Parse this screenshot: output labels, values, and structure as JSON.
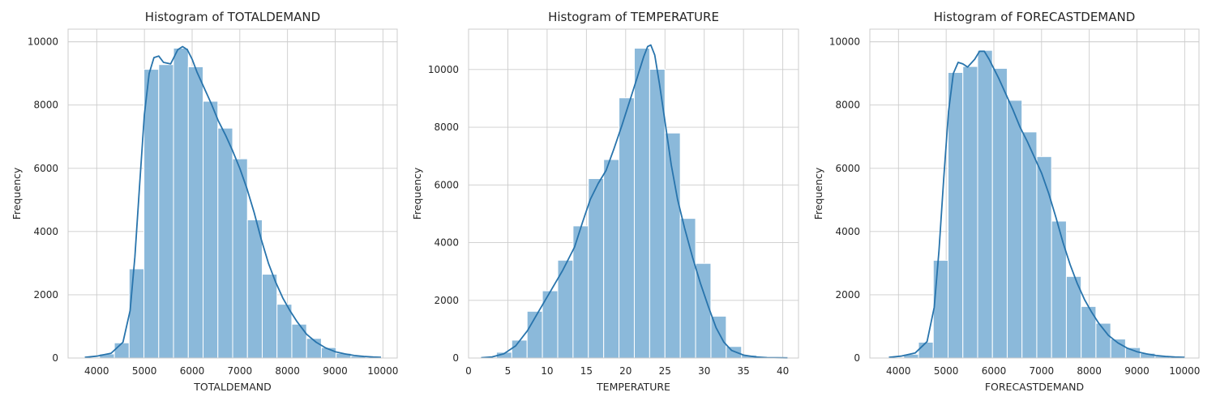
{
  "chart_data": [
    {
      "type": "bar",
      "title": "Histogram of TOTALDEMAND",
      "xlabel": "TOTALDEMAND",
      "ylabel": "Frequency",
      "xlim": [
        3400,
        10300
      ],
      "ylim": [
        0,
        10400
      ],
      "xticks": [
        4000,
        5000,
        6000,
        7000,
        8000,
        9000,
        10000
      ],
      "yticks": [
        0,
        2000,
        4000,
        6000,
        8000,
        10000
      ],
      "bins": [
        {
          "x0": 3750,
          "x1": 4060,
          "value": 20
        },
        {
          "x0": 4060,
          "x1": 4370,
          "value": 130
        },
        {
          "x0": 4370,
          "x1": 4680,
          "value": 480
        },
        {
          "x0": 4680,
          "x1": 4990,
          "value": 2820
        },
        {
          "x0": 4990,
          "x1": 5300,
          "value": 9130
        },
        {
          "x0": 5300,
          "x1": 5610,
          "value": 9280
        },
        {
          "x0": 5610,
          "x1": 5920,
          "value": 9800
        },
        {
          "x0": 5920,
          "x1": 6230,
          "value": 9210
        },
        {
          "x0": 6230,
          "x1": 6540,
          "value": 8120
        },
        {
          "x0": 6540,
          "x1": 6850,
          "value": 7270
        },
        {
          "x0": 6850,
          "x1": 7160,
          "value": 6300
        },
        {
          "x0": 7160,
          "x1": 7470,
          "value": 4370
        },
        {
          "x0": 7470,
          "x1": 7780,
          "value": 2650
        },
        {
          "x0": 7780,
          "x1": 8090,
          "value": 1700
        },
        {
          "x0": 8090,
          "x1": 8400,
          "value": 1070
        },
        {
          "x0": 8400,
          "x1": 8710,
          "value": 620
        },
        {
          "x0": 8710,
          "x1": 9020,
          "value": 330
        },
        {
          "x0": 9020,
          "x1": 9330,
          "value": 150
        },
        {
          "x0": 9330,
          "x1": 9640,
          "value": 60
        },
        {
          "x0": 9640,
          "x1": 9950,
          "value": 20
        }
      ],
      "kde": [
        [
          3750,
          20
        ],
        [
          4000,
          60
        ],
        [
          4300,
          150
        ],
        [
          4550,
          500
        ],
        [
          4700,
          1500
        ],
        [
          4800,
          3200
        ],
        [
          4900,
          5500
        ],
        [
          5000,
          7700
        ],
        [
          5100,
          9000
        ],
        [
          5200,
          9500
        ],
        [
          5300,
          9550
        ],
        [
          5400,
          9350
        ],
        [
          5550,
          9300
        ],
        [
          5700,
          9750
        ],
        [
          5800,
          9850
        ],
        [
          5900,
          9750
        ],
        [
          6000,
          9450
        ],
        [
          6100,
          9050
        ],
        [
          6250,
          8550
        ],
        [
          6400,
          8050
        ],
        [
          6550,
          7500
        ],
        [
          6700,
          7050
        ],
        [
          6850,
          6550
        ],
        [
          7000,
          6000
        ],
        [
          7150,
          5350
        ],
        [
          7300,
          4600
        ],
        [
          7450,
          3750
        ],
        [
          7600,
          3000
        ],
        [
          7750,
          2400
        ],
        [
          7900,
          1900
        ],
        [
          8050,
          1500
        ],
        [
          8200,
          1150
        ],
        [
          8400,
          750
        ],
        [
          8600,
          500
        ],
        [
          8800,
          320
        ],
        [
          9000,
          200
        ],
        [
          9200,
          130
        ],
        [
          9400,
          80
        ],
        [
          9600,
          50
        ],
        [
          9800,
          30
        ],
        [
          9960,
          20
        ]
      ]
    },
    {
      "type": "bar",
      "title": "Histogram of TEMPERATURE",
      "xlabel": "TEMPERATURE",
      "ylabel": "Frequency",
      "xlim": [
        0,
        42
      ],
      "ylim": [
        0,
        11400
      ],
      "xticks": [
        0,
        5,
        10,
        15,
        20,
        25,
        30,
        35,
        40
      ],
      "yticks": [
        0,
        2000,
        4000,
        6000,
        8000,
        10000
      ],
      "bins": [
        {
          "x0": 1.6,
          "x1": 3.55,
          "value": 20
        },
        {
          "x0": 3.55,
          "x1": 5.5,
          "value": 200
        },
        {
          "x0": 5.5,
          "x1": 7.45,
          "value": 620
        },
        {
          "x0": 7.45,
          "x1": 9.4,
          "value": 1620
        },
        {
          "x0": 9.4,
          "x1": 11.35,
          "value": 2330
        },
        {
          "x0": 11.35,
          "x1": 13.3,
          "value": 3390
        },
        {
          "x0": 13.3,
          "x1": 15.25,
          "value": 4580
        },
        {
          "x0": 15.25,
          "x1": 17.2,
          "value": 6220
        },
        {
          "x0": 17.2,
          "x1": 19.15,
          "value": 6880
        },
        {
          "x0": 19.15,
          "x1": 21.1,
          "value": 9020
        },
        {
          "x0": 21.1,
          "x1": 23.05,
          "value": 10740
        },
        {
          "x0": 23.05,
          "x1": 25.0,
          "value": 10010
        },
        {
          "x0": 25.0,
          "x1": 26.95,
          "value": 7800
        },
        {
          "x0": 26.95,
          "x1": 28.9,
          "value": 4840
        },
        {
          "x0": 28.9,
          "x1": 30.85,
          "value": 3280
        },
        {
          "x0": 30.85,
          "x1": 32.8,
          "value": 1450
        },
        {
          "x0": 32.8,
          "x1": 34.75,
          "value": 400
        },
        {
          "x0": 34.75,
          "x1": 36.7,
          "value": 100
        },
        {
          "x0": 36.7,
          "x1": 38.65,
          "value": 20
        },
        {
          "x0": 38.65,
          "x1": 40.6,
          "value": 10
        }
      ],
      "kde": [
        [
          1.6,
          10
        ],
        [
          3,
          40
        ],
        [
          4.5,
          150
        ],
        [
          6,
          420
        ],
        [
          7.5,
          950
        ],
        [
          9,
          1650
        ],
        [
          10.5,
          2350
        ],
        [
          12,
          3050
        ],
        [
          13.5,
          3850
        ],
        [
          14.5,
          4700
        ],
        [
          15.5,
          5500
        ],
        [
          16.5,
          6050
        ],
        [
          17.5,
          6500
        ],
        [
          18.5,
          7250
        ],
        [
          19.5,
          8050
        ],
        [
          20.5,
          8900
        ],
        [
          21.5,
          9750
        ],
        [
          22.3,
          10450
        ],
        [
          22.8,
          10800
        ],
        [
          23.2,
          10850
        ],
        [
          23.7,
          10500
        ],
        [
          24.3,
          9500
        ],
        [
          25,
          8200
        ],
        [
          25.8,
          6700
        ],
        [
          26.6,
          5500
        ],
        [
          27.5,
          4500
        ],
        [
          28.5,
          3500
        ],
        [
          29.5,
          2600
        ],
        [
          30.5,
          1800
        ],
        [
          31.5,
          1050
        ],
        [
          32.5,
          550
        ],
        [
          33.5,
          260
        ],
        [
          35,
          100
        ],
        [
          36.5,
          40
        ],
        [
          38,
          15
        ],
        [
          40.6,
          5
        ]
      ]
    },
    {
      "type": "bar",
      "title": "Histogram of FORECASTDEMAND",
      "xlabel": "FORECASTDEMAND",
      "ylabel": "Frequency",
      "xlim": [
        3400,
        10300
      ],
      "ylim": [
        0,
        10400
      ],
      "xticks": [
        4000,
        5000,
        6000,
        7000,
        8000,
        9000,
        10000
      ],
      "yticks": [
        0,
        2000,
        4000,
        6000,
        8000,
        10000
      ],
      "bins": [
        {
          "x0": 3800,
          "x1": 4110,
          "value": 20
        },
        {
          "x0": 4110,
          "x1": 4420,
          "value": 120
        },
        {
          "x0": 4420,
          "x1": 4730,
          "value": 500
        },
        {
          "x0": 4730,
          "x1": 5040,
          "value": 3090
        },
        {
          "x0": 5040,
          "x1": 5350,
          "value": 9030
        },
        {
          "x0": 5350,
          "x1": 5660,
          "value": 9220
        },
        {
          "x0": 5660,
          "x1": 5970,
          "value": 9730
        },
        {
          "x0": 5970,
          "x1": 6280,
          "value": 9160
        },
        {
          "x0": 6280,
          "x1": 6590,
          "value": 8150
        },
        {
          "x0": 6590,
          "x1": 6900,
          "value": 7150
        },
        {
          "x0": 6900,
          "x1": 7210,
          "value": 6370
        },
        {
          "x0": 7210,
          "x1": 7520,
          "value": 4330
        },
        {
          "x0": 7520,
          "x1": 7830,
          "value": 2580
        },
        {
          "x0": 7830,
          "x1": 8140,
          "value": 1630
        },
        {
          "x0": 8140,
          "x1": 8450,
          "value": 1100
        },
        {
          "x0": 8450,
          "x1": 8760,
          "value": 600
        },
        {
          "x0": 8760,
          "x1": 9070,
          "value": 330
        },
        {
          "x0": 9070,
          "x1": 9380,
          "value": 150
        },
        {
          "x0": 9380,
          "x1": 9690,
          "value": 60
        },
        {
          "x0": 9690,
          "x1": 10000,
          "value": 20
        }
      ],
      "kde": [
        [
          3800,
          20
        ],
        [
          4050,
          60
        ],
        [
          4350,
          160
        ],
        [
          4600,
          520
        ],
        [
          4750,
          1600
        ],
        [
          4850,
          3400
        ],
        [
          4950,
          5700
        ],
        [
          5050,
          7800
        ],
        [
          5150,
          9000
        ],
        [
          5250,
          9350
        ],
        [
          5350,
          9300
        ],
        [
          5450,
          9200
        ],
        [
          5600,
          9450
        ],
        [
          5700,
          9700
        ],
        [
          5800,
          9700
        ],
        [
          5900,
          9450
        ],
        [
          6000,
          9150
        ],
        [
          6100,
          8850
        ],
        [
          6250,
          8350
        ],
        [
          6400,
          7850
        ],
        [
          6550,
          7300
        ],
        [
          6700,
          6850
        ],
        [
          6850,
          6350
        ],
        [
          7000,
          5850
        ],
        [
          7150,
          5200
        ],
        [
          7300,
          4450
        ],
        [
          7450,
          3650
        ],
        [
          7600,
          2950
        ],
        [
          7750,
          2350
        ],
        [
          7900,
          1850
        ],
        [
          8050,
          1450
        ],
        [
          8200,
          1100
        ],
        [
          8400,
          720
        ],
        [
          8600,
          480
        ],
        [
          8800,
          310
        ],
        [
          9000,
          200
        ],
        [
          9200,
          130
        ],
        [
          9400,
          80
        ],
        [
          9600,
          50
        ],
        [
          9800,
          30
        ],
        [
          10000,
          20
        ]
      ]
    }
  ]
}
